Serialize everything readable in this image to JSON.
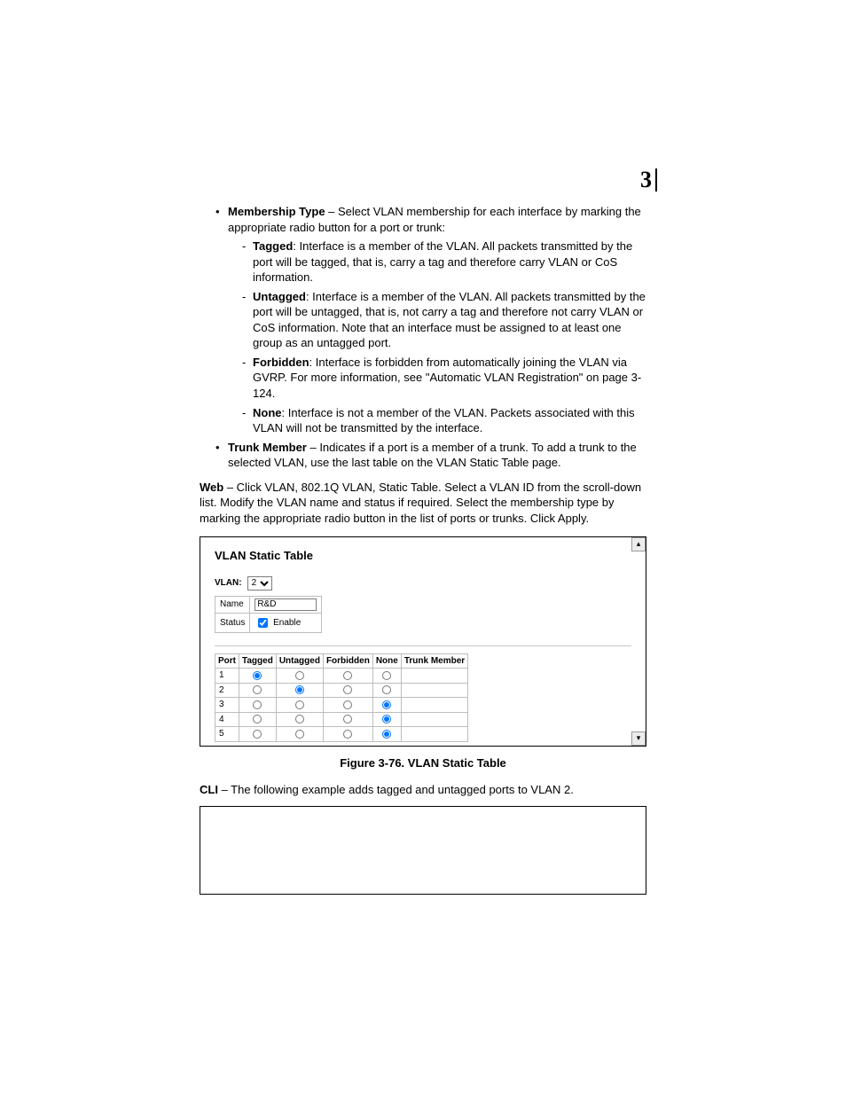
{
  "meta": {
    "chapter_number": "3"
  },
  "bullets": {
    "membership_type_label": "Membership Type",
    "membership_type_text": " – Select VLAN membership for each interface by marking the appropriate radio button for a port or trunk:",
    "tagged_label": "Tagged",
    "tagged_text": ": Interface is a member of the VLAN. All packets transmitted by the port will be tagged, that is, carry a tag and therefore carry VLAN or CoS information.",
    "untagged_label": "Untagged",
    "untagged_text": ": Interface is a member of the VLAN. All packets transmitted by the port will be untagged, that is, not carry a tag and therefore not carry VLAN or CoS information. Note that an interface must be assigned to at least one group as an untagged port.",
    "forbidden_label": "Forbidden",
    "forbidden_text": ": Interface is forbidden from automatically joining the VLAN via GVRP. For more information, see \"Automatic VLAN Registration\" on page 3-124.",
    "none_label": "None",
    "none_text": ": Interface is not a member of the VLAN. Packets associated with this VLAN will not be transmitted by the interface.",
    "trunk_member_label": "Trunk Member",
    "trunk_member_text": " – Indicates if a port is a member of a trunk. To add a trunk to the selected VLAN, use the last table on the VLAN Static Table page."
  },
  "web_para": {
    "label": "Web",
    "text": " – Click VLAN, 802.1Q VLAN, Static Table. Select a VLAN ID from the scroll-down list. Modify the VLAN name and status if required. Select the membership type by marking the appropriate radio button in the list of ports or trunks. Click Apply."
  },
  "figure": {
    "title": "VLAN Static Table",
    "vlan_label": "VLAN:",
    "vlan_value": "2",
    "name_label": "Name",
    "name_value": "R&D",
    "status_label": "Status",
    "status_enable": "Enable",
    "status_checked": true,
    "columns": [
      "Port",
      "Tagged",
      "Untagged",
      "Forbidden",
      "None",
      "Trunk Member"
    ],
    "rows": [
      {
        "port": "1",
        "sel": 0
      },
      {
        "port": "2",
        "sel": 1
      },
      {
        "port": "3",
        "sel": 3
      },
      {
        "port": "4",
        "sel": 3
      },
      {
        "port": "5",
        "sel": 3
      }
    ],
    "scroll_up_glyph": "▴",
    "scroll_down_glyph": "▾"
  },
  "caption": "Figure 3-76.  VLAN Static Table",
  "cli_para": {
    "label": "CLI",
    "text": " – The following example adds tagged and untagged ports to VLAN 2."
  }
}
